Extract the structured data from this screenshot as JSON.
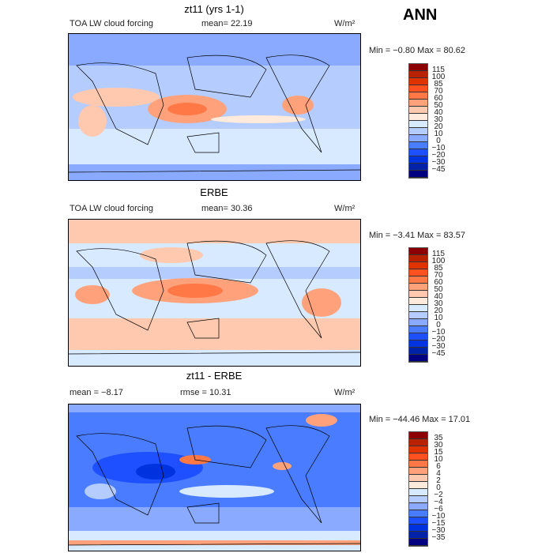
{
  "season": "ANN",
  "units": "W/m²",
  "panels": [
    {
      "title": "zt11 (yrs 1-1)",
      "field": "TOA LW cloud forcing",
      "stat1": "mean=  22.19",
      "minmax": "Min =  −0.80 Max =  80.62",
      "levels": [
        "115",
        "100",
        "85",
        "70",
        "60",
        "50",
        "40",
        "30",
        "20",
        "10",
        "0",
        "−10",
        "−20",
        "−30",
        "−45"
      ]
    },
    {
      "title": "ERBE",
      "field": "TOA LW cloud forcing",
      "stat1": "mean=  30.36",
      "minmax": "Min =  −3.41 Max =  83.57",
      "levels": [
        "115",
        "100",
        "85",
        "70",
        "60",
        "50",
        "40",
        "30",
        "20",
        "10",
        "0",
        "−10",
        "−20",
        "−30",
        "−45"
      ]
    },
    {
      "title": "zt11 - ERBE",
      "field": "",
      "stat1": "mean =  −8.17",
      "stat2": "rmse =  10.31",
      "minmax": "Min = −44.46 Max =  17.01",
      "levels": [
        "35",
        "30",
        "15",
        "10",
        "6",
        "4",
        "2",
        "0",
        "−2",
        "−4",
        "−6",
        "−10",
        "−15",
        "−30",
        "−35"
      ]
    }
  ],
  "colors": [
    "#8b0000",
    "#b82200",
    "#e03300",
    "#ff5020",
    "#ff7845",
    "#ffa27c",
    "#ffc9b0",
    "#ffeadb",
    "#d8eaff",
    "#b5ccff",
    "#89aaff",
    "#4a7cff",
    "#1f50ff",
    "#0033e0",
    "#0022a8",
    "#000080"
  ]
}
